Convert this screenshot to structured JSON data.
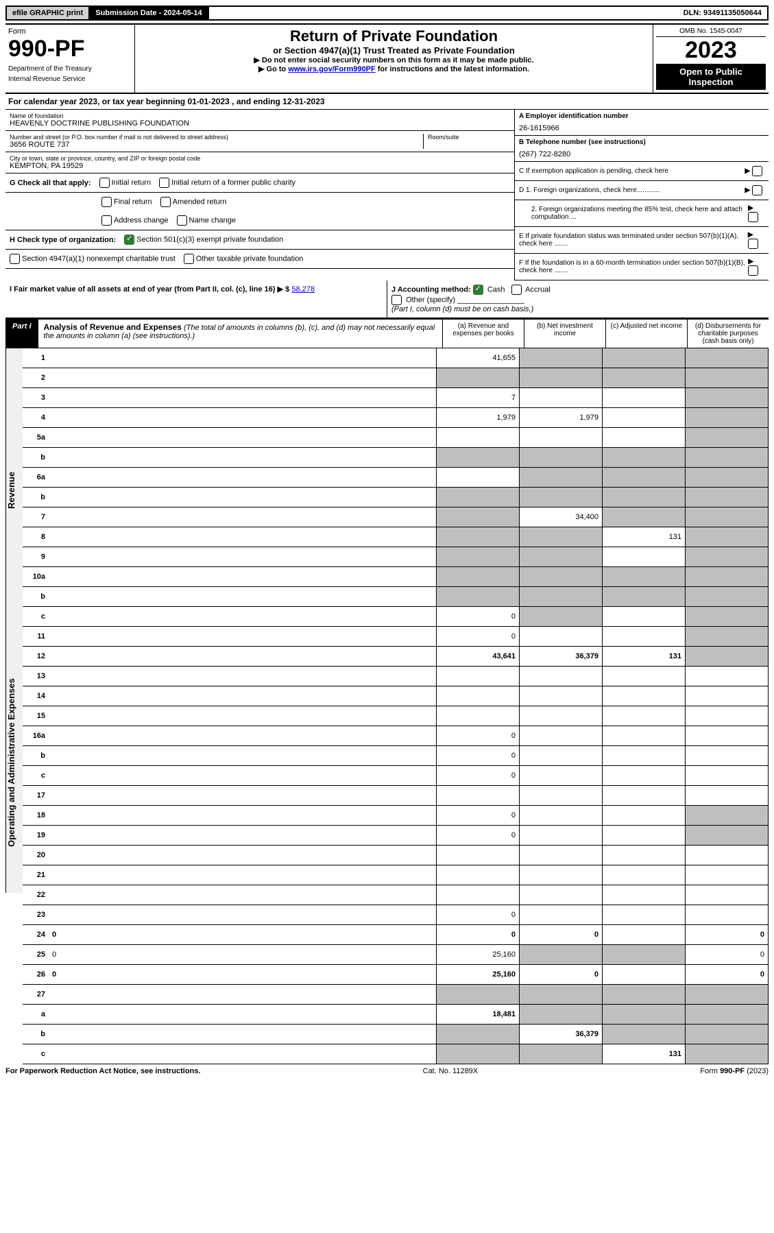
{
  "top_bar": {
    "efile": "efile GRAPHIC print",
    "submission": "Submission Date - 2024-05-14",
    "dln": "DLN: 93491135050644"
  },
  "header": {
    "form_label": "Form",
    "form_number": "990-PF",
    "dept": "Department of the Treasury",
    "irs": "Internal Revenue Service",
    "title": "Return of Private Foundation",
    "subtitle": "or Section 4947(a)(1) Trust Treated as Private Foundation",
    "note1": "▶ Do not enter social security numbers on this form as it may be made public.",
    "note2_pre": "▶ Go to ",
    "note2_link": "www.irs.gov/Form990PF",
    "note2_post": " for instructions and the latest information.",
    "omb": "OMB No. 1545-0047",
    "year": "2023",
    "inspection": "Open to Public Inspection"
  },
  "cal_year": "For calendar year 2023, or tax year beginning 01-01-2023                          , and ending 12-31-2023",
  "foundation": {
    "name_label": "Name of foundation",
    "name": "HEAVENLY DOCTRINE PUBLISHING FOUNDATION",
    "addr_label": "Number and street (or P.O. box number if mail is not delivered to street address)",
    "addr": "3656 ROUTE 737",
    "room_label": "Room/suite",
    "city_label": "City or town, state or province, country, and ZIP or foreign postal code",
    "city": "KEMPTON, PA  19529",
    "ein_label": "A Employer identification number",
    "ein": "26-1615966",
    "phone_label": "B Telephone number (see instructions)",
    "phone": "(267) 722-8280",
    "c_label": "C If exemption application is pending, check here",
    "d1": "D 1. Foreign organizations, check here............",
    "d2": "2. Foreign organizations meeting the 85% test, check here and attach computation ...",
    "e": "E  If private foundation status was terminated under section 507(b)(1)(A), check here .......",
    "f": "F  If the foundation is in a 60-month termination under section 507(b)(1)(B), check here ......."
  },
  "checks": {
    "g_label": "G Check all that apply:",
    "initial": "Initial return",
    "initial_former": "Initial return of a former public charity",
    "final": "Final return",
    "amended": "Amended return",
    "address": "Address change",
    "name_change": "Name change",
    "h_label": "H Check type of organization:",
    "h501": "Section 501(c)(3) exempt private foundation",
    "h4947": "Section 4947(a)(1) nonexempt charitable trust",
    "hother": "Other taxable private foundation",
    "i_label": "I Fair market value of all assets at end of year (from Part II, col. (c), line 16) ▶ $",
    "i_value": "58,278",
    "j_label": "J Accounting method:",
    "j_cash": "Cash",
    "j_accrual": "Accrual",
    "j_other": "Other (specify)",
    "j_note": "(Part I, column (d) must be on cash basis.)"
  },
  "part1": {
    "label": "Part I",
    "title": "Analysis of Revenue and Expenses",
    "subtitle": "(The total of amounts in columns (b), (c), and (d) may not necessarily equal the amounts in column (a) (see instructions).)",
    "col_a": "(a)   Revenue and expenses per books",
    "col_b": "(b)   Net investment income",
    "col_c": "(c)   Adjusted net income",
    "col_d": "(d)   Disbursements for charitable purposes (cash basis only)"
  },
  "side_labels": {
    "revenue": "Revenue",
    "expenses": "Operating and Administrative Expenses"
  },
  "rows": [
    {
      "n": "1",
      "d": "",
      "a": "41,655",
      "b": "",
      "c": "",
      "sb": true,
      "sc": true,
      "sd": true
    },
    {
      "n": "2",
      "d": "",
      "a": "",
      "b": "",
      "c": "",
      "sa": true,
      "sb": true,
      "sc": true,
      "sd": true
    },
    {
      "n": "3",
      "d": "",
      "a": "7",
      "b": "",
      "c": "",
      "sd": true
    },
    {
      "n": "4",
      "d": "",
      "a": "1,979",
      "b": "1,979",
      "c": "",
      "sd": true
    },
    {
      "n": "5a",
      "d": "",
      "a": "",
      "b": "",
      "c": "",
      "sd": true
    },
    {
      "n": "b",
      "d": "",
      "a": "",
      "b": "",
      "c": "",
      "sa": true,
      "sb": true,
      "sc": true,
      "sd": true
    },
    {
      "n": "6a",
      "d": "",
      "a": "",
      "b": "",
      "c": "",
      "sb": true,
      "sc": true,
      "sd": true
    },
    {
      "n": "b",
      "d": "",
      "a": "",
      "b": "",
      "c": "",
      "sa": true,
      "sb": true,
      "sc": true,
      "sd": true
    },
    {
      "n": "7",
      "d": "",
      "a": "",
      "b": "34,400",
      "c": "",
      "sa": true,
      "sc": true,
      "sd": true
    },
    {
      "n": "8",
      "d": "",
      "a": "",
      "b": "",
      "c": "131",
      "sa": true,
      "sb": true,
      "sd": true
    },
    {
      "n": "9",
      "d": "",
      "a": "",
      "b": "",
      "c": "",
      "sa": true,
      "sb": true,
      "sd": true
    },
    {
      "n": "10a",
      "d": "",
      "a": "",
      "b": "",
      "c": "",
      "sa": true,
      "sb": true,
      "sc": true,
      "sd": true
    },
    {
      "n": "b",
      "d": "",
      "a": "",
      "b": "",
      "c": "",
      "sa": true,
      "sb": true,
      "sc": true,
      "sd": true
    },
    {
      "n": "c",
      "d": "",
      "a": "0",
      "b": "",
      "c": "",
      "sb": true,
      "sd": true
    },
    {
      "n": "11",
      "d": "",
      "a": "0",
      "b": "",
      "c": "",
      "sd": true
    },
    {
      "n": "12",
      "d": "",
      "a": "43,641",
      "b": "36,379",
      "c": "131",
      "bold": true,
      "sd": true
    },
    {
      "n": "13",
      "d": "",
      "a": "",
      "b": "",
      "c": ""
    },
    {
      "n": "14",
      "d": "",
      "a": "",
      "b": "",
      "c": ""
    },
    {
      "n": "15",
      "d": "",
      "a": "",
      "b": "",
      "c": ""
    },
    {
      "n": "16a",
      "d": "",
      "a": "0",
      "b": "",
      "c": ""
    },
    {
      "n": "b",
      "d": "",
      "a": "0",
      "b": "",
      "c": ""
    },
    {
      "n": "c",
      "d": "",
      "a": "0",
      "b": "",
      "c": ""
    },
    {
      "n": "17",
      "d": "",
      "a": "",
      "b": "",
      "c": ""
    },
    {
      "n": "18",
      "d": "",
      "a": "0",
      "b": "",
      "c": "",
      "sd": true
    },
    {
      "n": "19",
      "d": "",
      "a": "0",
      "b": "",
      "c": "",
      "sd": true
    },
    {
      "n": "20",
      "d": "",
      "a": "",
      "b": "",
      "c": ""
    },
    {
      "n": "21",
      "d": "",
      "a": "",
      "b": "",
      "c": ""
    },
    {
      "n": "22",
      "d": "",
      "a": "",
      "b": "",
      "c": ""
    },
    {
      "n": "23",
      "d": "",
      "a": "0",
      "b": "",
      "c": ""
    },
    {
      "n": "24",
      "d": "0",
      "a": "0",
      "b": "0",
      "c": "",
      "bold": true
    },
    {
      "n": "25",
      "d": "0",
      "a": "25,160",
      "b": "",
      "c": "",
      "sb": true,
      "sc": true
    },
    {
      "n": "26",
      "d": "0",
      "a": "25,160",
      "b": "0",
      "c": "",
      "bold": true
    },
    {
      "n": "27",
      "d": "",
      "a": "",
      "b": "",
      "c": "",
      "sa": true,
      "sb": true,
      "sc": true,
      "sd": true
    },
    {
      "n": "a",
      "d": "",
      "a": "18,481",
      "b": "",
      "c": "",
      "bold": true,
      "sb": true,
      "sc": true,
      "sd": true
    },
    {
      "n": "b",
      "d": "",
      "a": "",
      "b": "36,379",
      "c": "",
      "bold": true,
      "sa": true,
      "sc": true,
      "sd": true
    },
    {
      "n": "c",
      "d": "",
      "a": "",
      "b": "",
      "c": "131",
      "bold": true,
      "sa": true,
      "sb": true,
      "sd": true
    }
  ],
  "footer": {
    "left": "For Paperwork Reduction Act Notice, see instructions.",
    "center": "Cat. No. 11289X",
    "right": "Form 990-PF (2023)"
  }
}
